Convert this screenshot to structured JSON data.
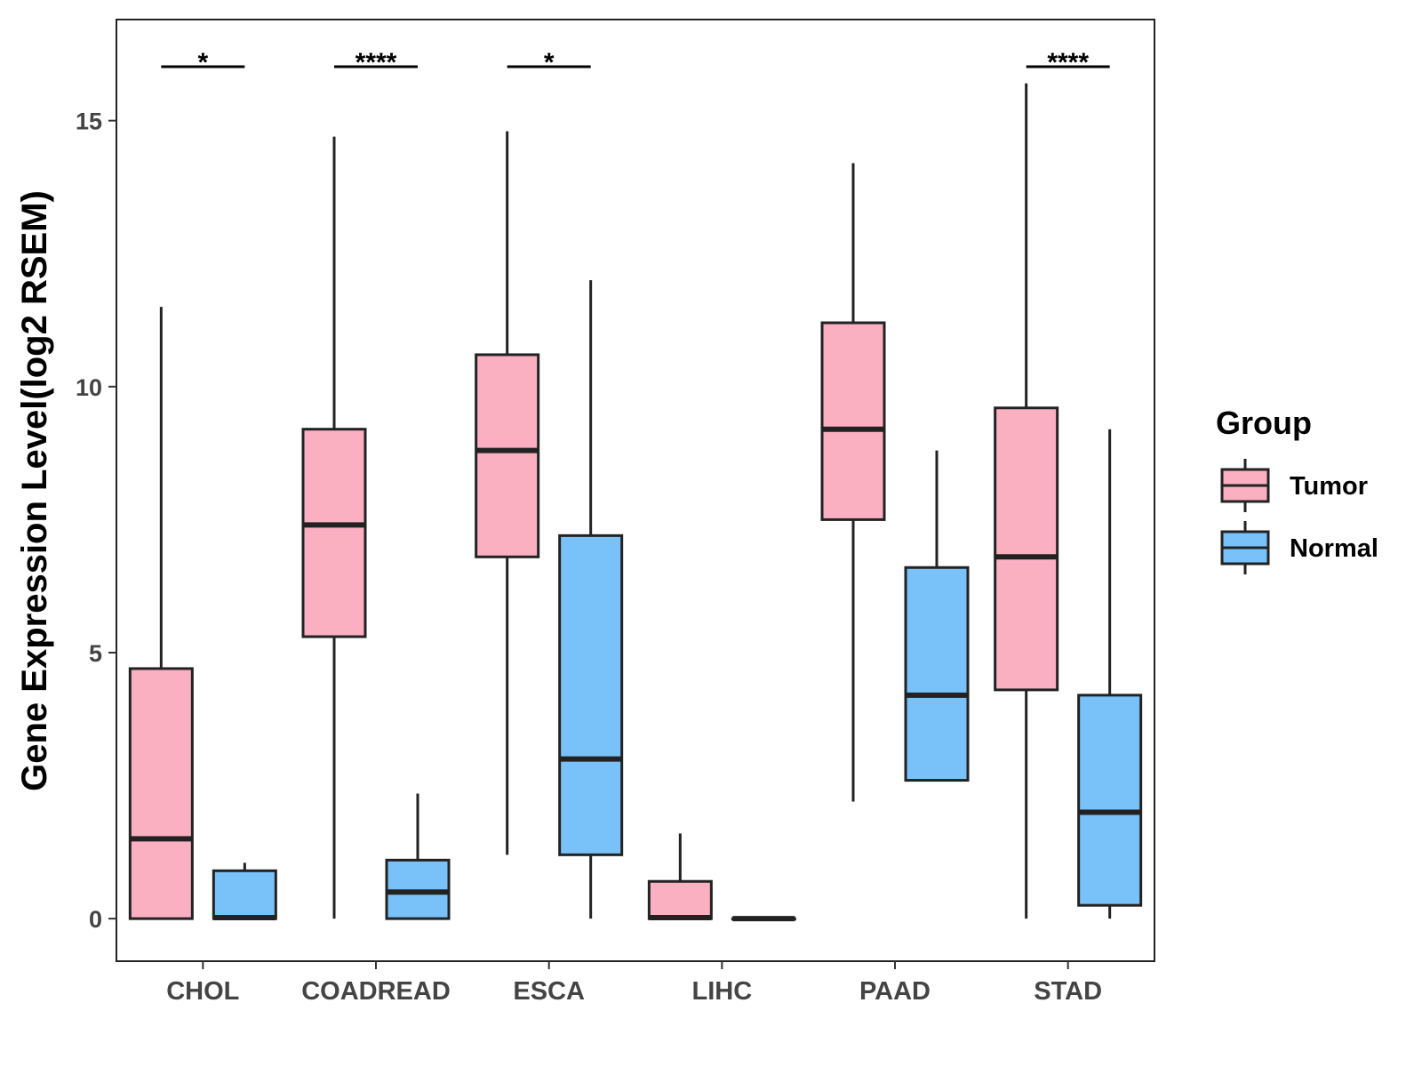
{
  "chart_data": {
    "type": "boxplot",
    "title": "",
    "xlabel": "",
    "ylabel": "Gene Expression Level(log2 RSEM)",
    "ylim": [
      -0.8,
      16.9
    ],
    "yticks": [
      0,
      5,
      10,
      15
    ],
    "grid": false,
    "categories": [
      "CHOL",
      "COADREAD",
      "ESCA",
      "LIHC",
      "PAAD",
      "STAD"
    ],
    "legend": {
      "title": "Group",
      "position": "right",
      "entries": [
        {
          "name": "Tumor",
          "color": "#FBB0C2"
        },
        {
          "name": "Normal",
          "color": "#78C2F9"
        }
      ]
    },
    "series": [
      {
        "name": "Tumor",
        "color": "#FBB0C2",
        "boxes": [
          {
            "category": "CHOL",
            "min": 0,
            "q1": 0,
            "median": 1.5,
            "q3": 4.7,
            "max": 11.5
          },
          {
            "category": "COADREAD",
            "min": 0,
            "q1": 5.3,
            "median": 7.4,
            "q3": 9.2,
            "max": 14.7
          },
          {
            "category": "ESCA",
            "min": 1.2,
            "q1": 6.8,
            "median": 8.8,
            "q3": 10.6,
            "max": 14.8
          },
          {
            "category": "LIHC",
            "min": 0,
            "q1": 0,
            "median": 0.02,
            "q3": 0.7,
            "max": 1.6
          },
          {
            "category": "PAAD",
            "min": 2.2,
            "q1": 7.5,
            "median": 9.2,
            "q3": 11.2,
            "max": 14.2
          },
          {
            "category": "STAD",
            "min": 0,
            "q1": 4.3,
            "median": 6.8,
            "q3": 9.6,
            "max": 15.7
          }
        ]
      },
      {
        "name": "Normal",
        "color": "#78C2F9",
        "boxes": [
          {
            "category": "CHOL",
            "min": 0,
            "q1": 0,
            "median": 0.02,
            "q3": 0.9,
            "max": 1.05
          },
          {
            "category": "COADREAD",
            "min": 0,
            "q1": 0,
            "median": 0.5,
            "q3": 1.1,
            "max": 2.35
          },
          {
            "category": "ESCA",
            "min": 0,
            "q1": 1.2,
            "median": 3.0,
            "q3": 7.2,
            "max": 12.0
          },
          {
            "category": "LIHC",
            "min": 0,
            "q1": 0,
            "median": 0,
            "q3": 0,
            "max": 0
          },
          {
            "category": "PAAD",
            "min": 2.6,
            "q1": 2.6,
            "median": 4.2,
            "q3": 6.6,
            "max": 8.8
          },
          {
            "category": "STAD",
            "min": 0,
            "q1": 0.25,
            "median": 2.0,
            "q3": 4.2,
            "max": 9.2
          }
        ]
      }
    ],
    "significance": [
      {
        "category": "CHOL",
        "label": "*"
      },
      {
        "category": "COADREAD",
        "label": "****"
      },
      {
        "category": "ESCA",
        "label": "*"
      },
      {
        "category": "STAD",
        "label": "****"
      }
    ]
  }
}
